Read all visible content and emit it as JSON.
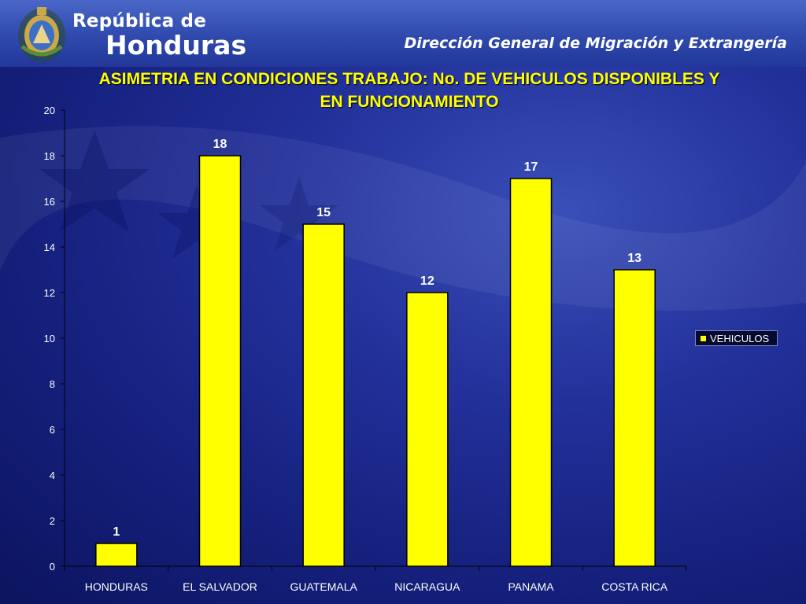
{
  "header": {
    "brand_line1": "República de",
    "brand_line2": "Honduras",
    "agency": "Dirección General de Migración y Extrangería"
  },
  "colors": {
    "bar_fill": "#ffff00",
    "bar_stroke": "#000000",
    "title_color": "#ffff00",
    "text_color": "#ffffff",
    "axis_color": "#000000"
  },
  "chart_data": {
    "type": "bar",
    "title": "ASIMETRIA EN CONDICIONES TRABAJO: No. DE VEHICULOS DISPONIBLES Y EN FUNCIONAMIENTO",
    "categories": [
      "HONDURAS",
      "EL SALVADOR",
      "GUATEMALA",
      "NICARAGUA",
      "PANAMA",
      "COSTA RICA"
    ],
    "series": [
      {
        "name": "VEHICULOS",
        "values": [
          1,
          18,
          15,
          12,
          17,
          13
        ]
      }
    ],
    "data_labels": [
      "1",
      "18",
      "15",
      "12",
      "17",
      "13"
    ],
    "yticks": [
      0,
      2,
      4,
      6,
      8,
      10,
      12,
      14,
      16,
      18,
      20
    ],
    "ylim": [
      0,
      20
    ],
    "xlabel": "",
    "ylabel": "",
    "grid": false,
    "legend_position": "right"
  }
}
